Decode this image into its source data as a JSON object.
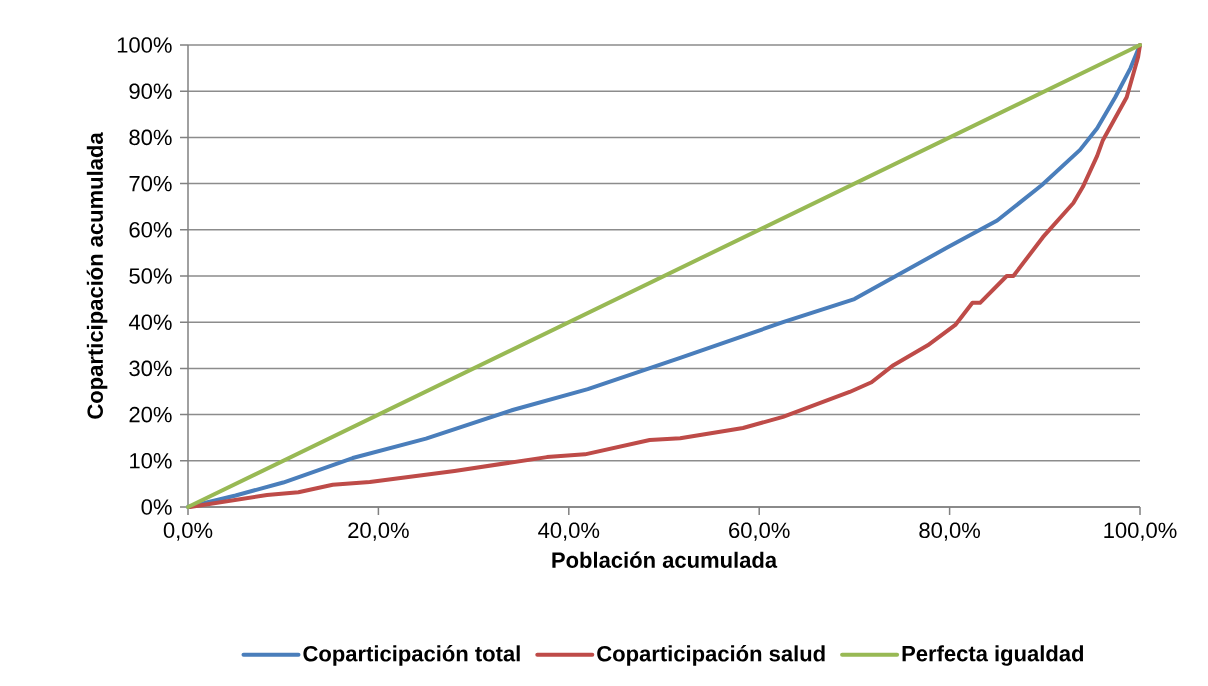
{
  "chart_data": {
    "type": "line",
    "xlabel": "Población acumulada",
    "ylabel": "Coparticipación acumulada",
    "xlim": [
      0,
      100
    ],
    "ylim": [
      0,
      100
    ],
    "xticks": [
      {
        "value": 0,
        "label": "0,0%"
      },
      {
        "value": 20,
        "label": "20,0%"
      },
      {
        "value": 40,
        "label": "40,0%"
      },
      {
        "value": 60,
        "label": "60,0%"
      },
      {
        "value": 80,
        "label": "80,0%"
      },
      {
        "value": 100,
        "label": "100,0%"
      }
    ],
    "yticks": [
      {
        "value": 0,
        "label": "0%"
      },
      {
        "value": 10,
        "label": "10%"
      },
      {
        "value": 20,
        "label": "20%"
      },
      {
        "value": 30,
        "label": "30%"
      },
      {
        "value": 40,
        "label": "40%"
      },
      {
        "value": 50,
        "label": "50%"
      },
      {
        "value": 60,
        "label": "60%"
      },
      {
        "value": 70,
        "label": "70%"
      },
      {
        "value": 80,
        "label": "80%"
      },
      {
        "value": 90,
        "label": "90%"
      },
      {
        "value": 100,
        "label": "100%"
      }
    ],
    "grid": "y",
    "legend": "bottom",
    "series": [
      {
        "name": "Coparticipación total",
        "color": "#4a7ebb",
        "x": [
          0,
          5,
          10,
          17.3,
          25,
          34.1,
          42,
          51.7,
          62.5,
          70,
          79.7,
          85,
          89.7,
          93.7,
          95.5,
          97.4,
          99,
          100
        ],
        "values": [
          0,
          2.5,
          5.3,
          10.6,
          14.8,
          21,
          25.5,
          32.3,
          40,
          45,
          56.1,
          62,
          69.7,
          77.3,
          82,
          88.7,
          95,
          100
        ]
      },
      {
        "name": "Coparticipación salud",
        "color": "#be4b48",
        "x": [
          0.2,
          8.3,
          11.6,
          15.2,
          19.1,
          28,
          37.7,
          41.7,
          48.5,
          51.7,
          58.3,
          62.5,
          69.5,
          71.8,
          74.1,
          77.7,
          80.6,
          82.4,
          83.2,
          86,
          86.7,
          89.8,
          93,
          94,
          95.5,
          96.1,
          98.6,
          99.8,
          100
        ],
        "values": [
          0,
          2.6,
          3.2,
          4.8,
          5.4,
          7.8,
          10.8,
          11.4,
          14.5,
          14.9,
          17.1,
          19.5,
          24.9,
          27,
          30.7,
          35,
          39.4,
          44.2,
          44.2,
          50,
          50,
          58.4,
          65.8,
          69.3,
          76,
          79.4,
          88.7,
          97.4,
          100
        ]
      },
      {
        "name": "Perfecta igualdad",
        "color": "#98b954",
        "x": [
          0,
          100
        ],
        "values": [
          0,
          100
        ]
      }
    ]
  }
}
